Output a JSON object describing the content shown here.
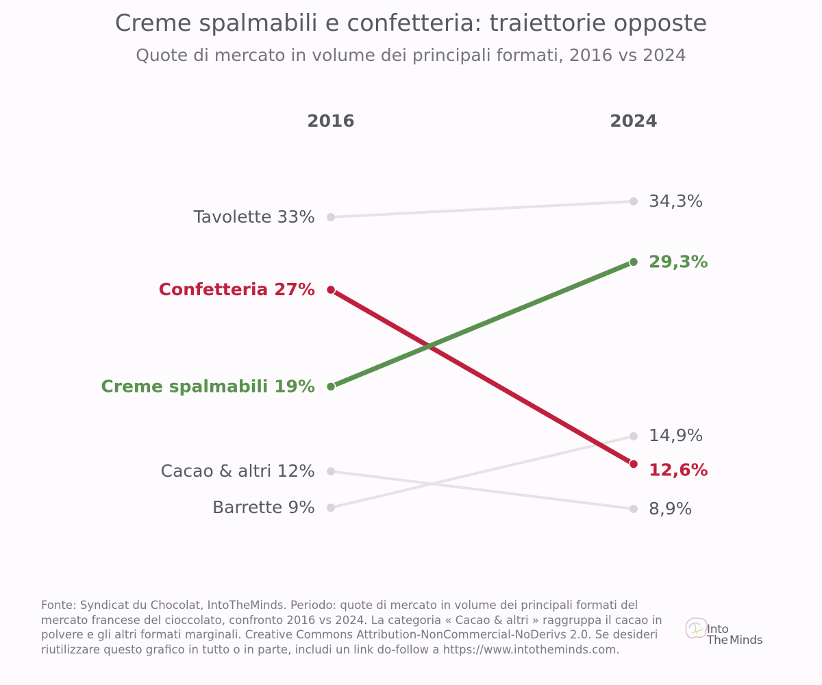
{
  "header": {
    "title": "Creme spalmabili e confetteria: traiettorie opposte",
    "subtitle": "Quote di mercato in volume dei principali formati, 2016 vs 2024"
  },
  "footer": {
    "source": "Fonte: Syndicat du Chocolat, IntoTheMinds. Periodo: quote di mercato in volume dei principali formati del mercato francese del cioccolato, confronto 2016 vs 2024. La categoria « Cacao & altri » raggruppa il cacao in polvere e gli altri formati marginali. Creative Commons Attribution-NonCommercial-NoDerivs 2.0. Se desideri riutilizzare questo grafico in tutto o in parte, includi un link do-follow a https://www.intotheminds.com."
  },
  "logo": {
    "part1": "Into",
    "part2": "The",
    "part3": "Minds"
  },
  "chart_data": {
    "type": "slope",
    "x": [
      "2016",
      "2024"
    ],
    "y_unit": "%",
    "series": [
      {
        "name": "Tavolette",
        "values": [
          33,
          34.3
        ],
        "labels": [
          "33%",
          "34,3%"
        ],
        "highlight": false,
        "color": "#e6e3e7"
      },
      {
        "name": "Confetteria",
        "values": [
          27,
          12.6
        ],
        "labels": [
          "27%",
          "12,6%"
        ],
        "highlight": true,
        "color": "#c0203d"
      },
      {
        "name": "Creme spalmabili",
        "values": [
          19,
          29.3
        ],
        "labels": [
          "19%",
          "29,3%"
        ],
        "highlight": true,
        "color": "#5a9150"
      },
      {
        "name": "Cacao & altri",
        "values": [
          12,
          8.9
        ],
        "labels": [
          "12%",
          "8,9%"
        ],
        "highlight": false,
        "color": "#e6e3e7"
      },
      {
        "name": "Barrette",
        "values": [
          9,
          14.9
        ],
        "labels": [
          "9%",
          "14,9%"
        ],
        "highlight": false,
        "color": "#e6e3e7"
      }
    ]
  },
  "colors": {
    "muted_text": "#5a5860",
    "muted_line": "#e6e3e7",
    "muted_dot": "#d8d5da",
    "confetteria": "#c0203d",
    "creme": "#5a9150",
    "background": "#fdfbfd"
  }
}
